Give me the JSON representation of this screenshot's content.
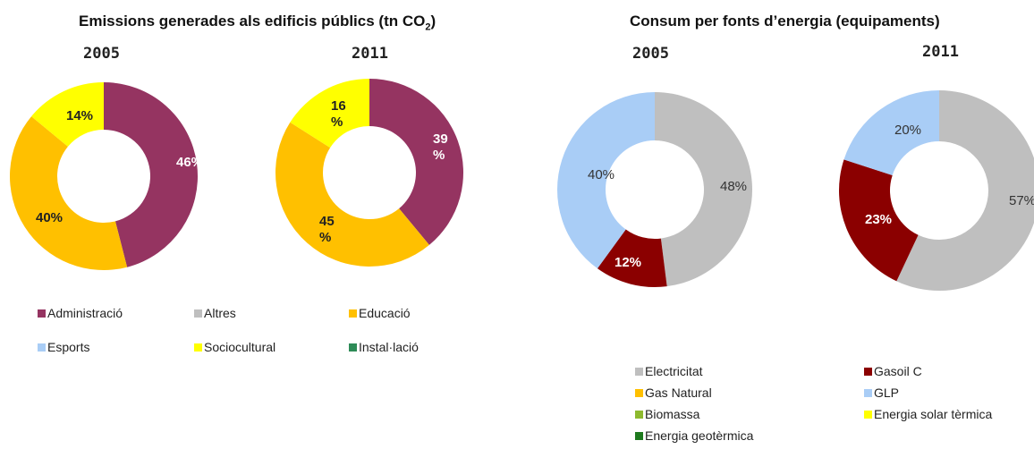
{
  "titles": {
    "left_main": "Emissions generades als edificis públics (tn CO",
    "left_sub": "2",
    "left_close": ")",
    "right": "Consum per fonts d’energia (equipaments)"
  },
  "chart_data": [
    {
      "type": "pie",
      "title": "2005",
      "group": "emissions",
      "slices": [
        {
          "label": "Administració",
          "value": 46,
          "text": "46%",
          "color": "#953461"
        },
        {
          "label": "Educació",
          "value": 40,
          "text": "40%",
          "color": "#FFC000"
        },
        {
          "label": "Sociocultural",
          "value": 14,
          "text": "14%",
          "color": "#FFFF00"
        }
      ]
    },
    {
      "type": "pie",
      "title": "2011",
      "group": "emissions",
      "slices": [
        {
          "label": "Administració",
          "value": 39,
          "text": "39 %",
          "color": "#953461"
        },
        {
          "label": "Educació",
          "value": 45,
          "text": "45 %",
          "color": "#FFC000"
        },
        {
          "label": "Sociocultural",
          "value": 16,
          "text": "16 %",
          "color": "#FFFF00"
        }
      ]
    },
    {
      "type": "pie",
      "title": "2005",
      "group": "energy",
      "slices": [
        {
          "label": "Electricitat",
          "value": 48,
          "text": "48%",
          "color": "#BFBFBF"
        },
        {
          "label": "Gasoil C",
          "value": 12,
          "text": "12%",
          "color": "#8B0000"
        },
        {
          "label": "GLP",
          "value": 40,
          "text": "40%",
          "color": "#A9CDF6"
        }
      ]
    },
    {
      "type": "pie",
      "title": "2011",
      "group": "energy",
      "slices": [
        {
          "label": "Electricitat",
          "value": 57,
          "text": "57%",
          "color": "#BFBFBF"
        },
        {
          "label": "Gasoil C",
          "value": 23,
          "text": "23%",
          "color": "#8B0000"
        },
        {
          "label": "GLP",
          "value": 20,
          "text": "20%",
          "color": "#A9CDF6"
        }
      ]
    }
  ],
  "legend_left": [
    {
      "label": "Administració",
      "color": "#953461"
    },
    {
      "label": "Altres",
      "color": "#BFBFBF"
    },
    {
      "label": "Educació",
      "color": "#FFC000"
    },
    {
      "label": "Esports",
      "color": "#A9CDF6"
    },
    {
      "label": "Sociocultural",
      "color": "#FFFF00"
    },
    {
      "label": "Instal·lació",
      "color": "#2E8B57"
    }
  ],
  "legend_right": [
    {
      "label": "Electricitat",
      "color": "#BFBFBF"
    },
    {
      "label": "Gasoil C",
      "color": "#8B0000"
    },
    {
      "label": "Gas Natural",
      "color": "#FFC000"
    },
    {
      "label": "GLP",
      "color": "#A9CDF6"
    },
    {
      "label": "Biomassa",
      "color": "#8DB92E"
    },
    {
      "label": "Energia solar tèrmica",
      "color": "#FFFF00"
    },
    {
      "label": "Energia geotèrmica",
      "color": "#1E7A1E"
    }
  ]
}
